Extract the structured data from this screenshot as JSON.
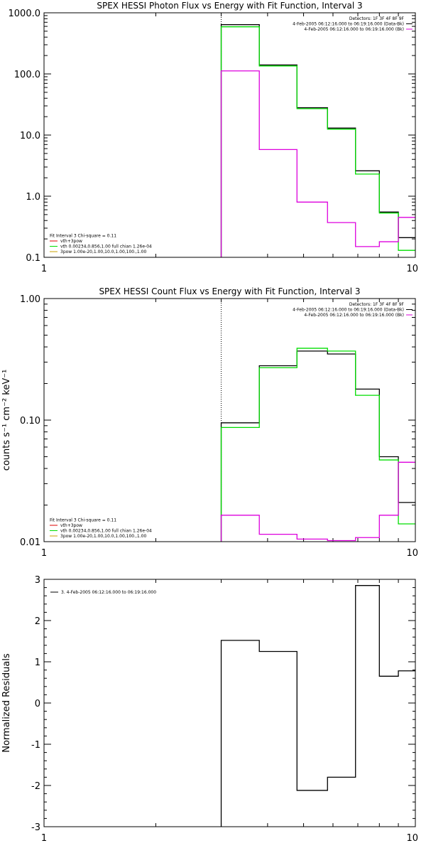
{
  "colors": {
    "data": "#000000",
    "model": "#00dd00",
    "bk": "#dd00dd",
    "thermal": "#dd0000",
    "spoly": "#c8a000"
  },
  "chart_data": [
    {
      "type": "step",
      "title": "SPEX HESSI Photon Flux vs Energy with Fit Function, Interval 3",
      "xlabel": "",
      "ylabel": "",
      "xscale": "log",
      "yscale": "log",
      "xlim": [
        1,
        10
      ],
      "ylim": [
        0.1,
        1000
      ],
      "xticks": [
        {
          "v": 1,
          "label": "1"
        },
        {
          "v": 10,
          "label": "10"
        }
      ],
      "yticks": [
        {
          "v": 0.1,
          "label": "0.1"
        },
        {
          "v": 1,
          "label": "1.0"
        },
        {
          "v": 10,
          "label": "10.0"
        },
        {
          "v": 100,
          "label": "100.0"
        },
        {
          "v": 1000,
          "label": "1000.0"
        }
      ],
      "marker_x": 3.0,
      "edges": [
        3.0,
        3.8,
        4.8,
        5.8,
        6.9,
        8.0,
        9.0,
        10.0
      ],
      "series": [
        {
          "color": "data",
          "values": [
            640,
            140,
            28,
            13,
            2.6,
            0.55,
            0.21
          ]
        },
        {
          "color": "model",
          "values": [
            590,
            135,
            27,
            12.5,
            2.3,
            0.53,
            0.13
          ]
        },
        {
          "color": "bk",
          "values": [
            112,
            5.8,
            0.8,
            0.37,
            0.15,
            0.18,
            0.45
          ]
        }
      ],
      "legend_tr": [
        {
          "text": "Detectors: 1F 3F 4F 8F 9F",
          "color": null
        },
        {
          "text": "4-Feb-2005 06:12:16.000 to 06:19:16.000 (Data-Bk)",
          "color": "data"
        },
        {
          "text": "4-Feb-2005 06:12:16.000 to 06:19:16.000 (Bk)",
          "color": "bk"
        }
      ],
      "legend_bl": [
        {
          "text": "Fit Interval 3   Chi-square = 0.11",
          "color": null
        },
        {
          "text": "vth+3pow",
          "color": "thermal"
        },
        {
          "text": "vth 0.00234,0.856,1.00   full chian 1.26e-04",
          "color": "model"
        },
        {
          "text": "3pow 1.00e-20,1.00,10.0,1.00,100.,1.00",
          "color": "spoly"
        }
      ]
    },
    {
      "type": "step",
      "title": "SPEX HESSI Count Flux vs Energy with Fit Function, Interval 3",
      "xlabel": "",
      "ylabel": "counts s⁻¹ cm⁻² keV⁻¹",
      "xscale": "log",
      "yscale": "log",
      "xlim": [
        1,
        10
      ],
      "ylim": [
        0.01,
        1
      ],
      "xticks": [
        {
          "v": 1,
          "label": "1"
        },
        {
          "v": 10,
          "label": "10"
        }
      ],
      "yticks": [
        {
          "v": 0.01,
          "label": "0.01"
        },
        {
          "v": 0.1,
          "label": "0.10"
        },
        {
          "v": 1,
          "label": "1.00"
        }
      ],
      "marker_x": 3.0,
      "edges": [
        3.0,
        3.8,
        4.8,
        5.8,
        6.9,
        8.0,
        9.0,
        10.0
      ],
      "series": [
        {
          "color": "data",
          "values": [
            0.095,
            0.28,
            0.37,
            0.35,
            0.18,
            0.05,
            0.021
          ]
        },
        {
          "color": "model",
          "values": [
            0.087,
            0.27,
            0.39,
            0.37,
            0.16,
            0.047,
            0.014
          ]
        },
        {
          "color": "bk",
          "values": [
            0.0165,
            0.0115,
            0.0105,
            0.0102,
            0.0108,
            0.0165,
            0.045
          ]
        }
      ],
      "legend_tr": [
        {
          "text": "Detectors: 1F 3F 4F 8F 9F",
          "color": null
        },
        {
          "text": "4-Feb-2005 06:12:16.000 to 06:19:16.000 (Data-Bk)",
          "color": "data"
        },
        {
          "text": "4-Feb-2005 06:12:16.000 to 06:19:16.000 (Bk)",
          "color": "bk"
        }
      ],
      "legend_bl": [
        {
          "text": "Fit Interval 3   Chi-square = 0.11",
          "color": null
        },
        {
          "text": "vth+3pow",
          "color": "thermal"
        },
        {
          "text": "vth 0.00234,0.856,1.00   full chian 1.26e-04",
          "color": "model"
        },
        {
          "text": "3pow 1.00e-20,1.00,10.0,1.00,100.,1.00",
          "color": "spoly"
        }
      ]
    },
    {
      "type": "step",
      "title": "",
      "xlabel": "",
      "ylabel": "Normalized Residuals",
      "xscale": "log",
      "yscale": "linear",
      "xlim": [
        1,
        10
      ],
      "ylim": [
        -3,
        3
      ],
      "xticks": [
        {
          "v": 1,
          "label": "1"
        },
        {
          "v": 10,
          "label": "10"
        }
      ],
      "yticks": [
        {
          "v": -3,
          "label": "-3"
        },
        {
          "v": -2,
          "label": "-2"
        },
        {
          "v": -1,
          "label": "-1"
        },
        {
          "v": 0,
          "label": "0"
        },
        {
          "v": 1,
          "label": "1"
        },
        {
          "v": 2,
          "label": "2"
        },
        {
          "v": 3,
          "label": "3"
        }
      ],
      "marker_x": null,
      "edges": [
        3.0,
        3.8,
        4.8,
        5.8,
        6.9,
        8.0,
        9.0,
        10.0
      ],
      "series": [
        {
          "color": "data",
          "values": [
            1.52,
            1.25,
            -2.12,
            -1.8,
            2.85,
            0.65,
            0.78
          ]
        }
      ],
      "legend_tr": [],
      "legend_bl": [],
      "legend_tl": [
        {
          "text": "3.  4-Feb-2005 06:12:16.000 to 06:19:16.000",
          "color": "data"
        }
      ]
    }
  ]
}
